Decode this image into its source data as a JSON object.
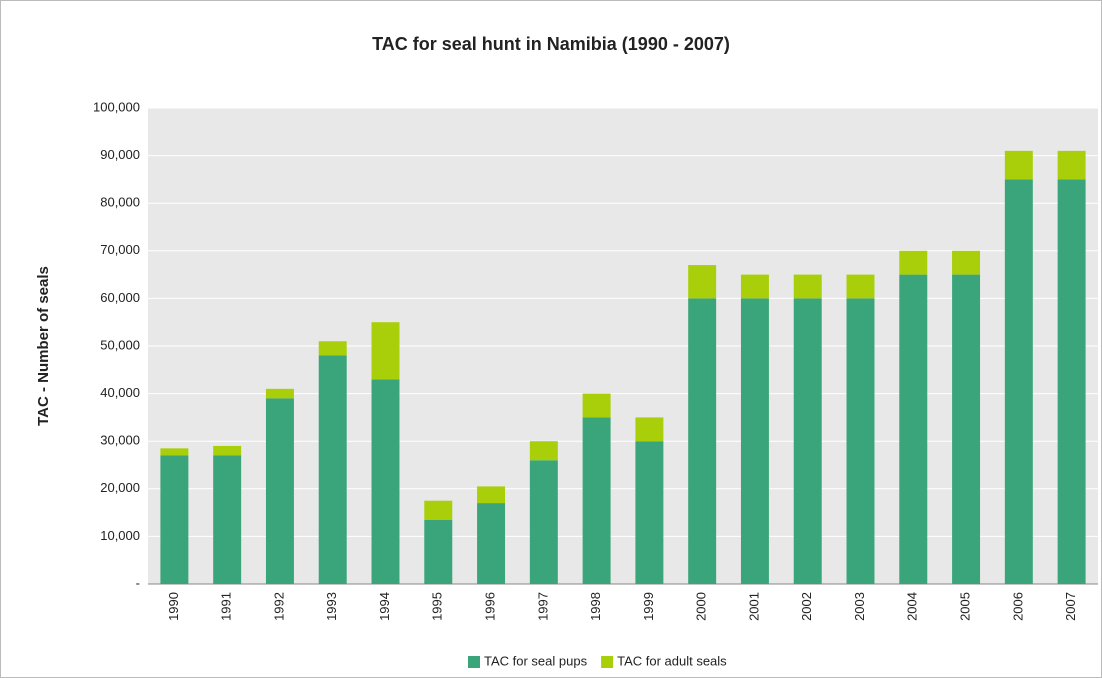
{
  "chart_data": {
    "type": "stacked_bar",
    "title": "TAC for seal hunt in Namibia (1990 - 2007)",
    "y_label": "TAC - Number of seals",
    "categories": [
      "1990",
      "1991",
      "1992",
      "1993",
      "1994",
      "1995",
      "1996",
      "1997",
      "1998",
      "1999",
      "2000",
      "2001",
      "2002",
      "2003",
      "2004",
      "2005",
      "2006",
      "2007"
    ],
    "series": [
      {
        "name": "TAC for seal pups",
        "color": "#3aa57a",
        "values": [
          27000,
          27000,
          39000,
          48000,
          43000,
          13500,
          17000,
          26000,
          35000,
          30000,
          60000,
          60000,
          60000,
          60000,
          65000,
          65000,
          85000,
          85000
        ]
      },
      {
        "name": "TAC for adult seals",
        "color": "#a8cf0a",
        "values": [
          1500,
          2000,
          2000,
          3000,
          12000,
          4000,
          3500,
          4000,
          5000,
          5000,
          7000,
          5000,
          5000,
          5000,
          5000,
          5000,
          6000,
          6000
        ]
      }
    ],
    "ylim": [
      0,
      100000
    ],
    "yticks": [
      {
        "value": 0,
        "label": "-"
      },
      {
        "value": 10000,
        "label": "10,000"
      },
      {
        "value": 20000,
        "label": "20,000"
      },
      {
        "value": 30000,
        "label": "30,000"
      },
      {
        "value": 40000,
        "label": "40,000"
      },
      {
        "value": 50000,
        "label": "50,000"
      },
      {
        "value": 60000,
        "label": "60,000"
      },
      {
        "value": 70000,
        "label": "70,000"
      },
      {
        "value": 80000,
        "label": "80,000"
      },
      {
        "value": 90000,
        "label": "90,000"
      },
      {
        "value": 100000,
        "label": "100,000"
      }
    ],
    "grid": true,
    "legend": "bottom"
  }
}
